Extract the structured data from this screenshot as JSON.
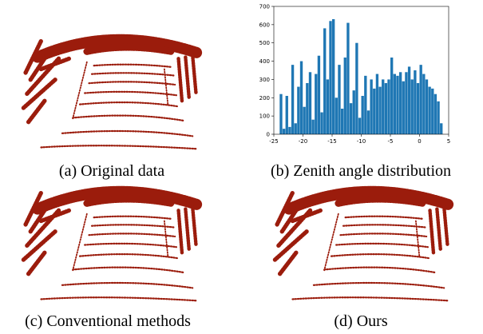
{
  "captions": [
    "(a) Original data",
    "(b) Zenith angle distribution",
    "(c) Conventional methods",
    "(d) Ours"
  ],
  "chart_data": {
    "type": "histogram",
    "color": "#1f77b4",
    "bins": [
      -24,
      -23.5,
      -23,
      -22.5,
      -22,
      -21.5,
      -21,
      -20.5,
      -20,
      -19.5,
      -19,
      -18.5,
      -18,
      -17.5,
      -17,
      -16.5,
      -16,
      -15.5,
      -15,
      -14.5,
      -14,
      -13.5,
      -13,
      -12.5,
      -12,
      -11.5,
      -11,
      -10.5,
      -10,
      -9.5,
      -9,
      -8.5,
      -8,
      -7.5,
      -7,
      -6.5,
      -6,
      -5.5,
      -5,
      -4.5,
      -4,
      -3.5,
      -3,
      -2.5,
      -2,
      -1.5,
      -1,
      -0.5,
      0,
      0.5,
      1,
      1.5,
      2,
      2.5,
      3,
      3.5,
      4
    ],
    "values": [
      220,
      30,
      210,
      40,
      380,
      60,
      260,
      400,
      150,
      280,
      340,
      80,
      330,
      430,
      120,
      580,
      300,
      620,
      630,
      200,
      380,
      140,
      420,
      610,
      170,
      240,
      500,
      90,
      210,
      320,
      130,
      300,
      250,
      330,
      260,
      300,
      280,
      300,
      420,
      330,
      320,
      340,
      290,
      340,
      370,
      300,
      350,
      280,
      380,
      330,
      300,
      260,
      250,
      220,
      180,
      60
    ],
    "xlim": [
      -25,
      5
    ],
    "ylim": [
      0,
      700
    ],
    "xticks": [
      -25,
      -20,
      -15,
      -10,
      -5,
      0,
      5
    ],
    "yticks": [
      0,
      100,
      200,
      300,
      400,
      500,
      600,
      700
    ]
  }
}
